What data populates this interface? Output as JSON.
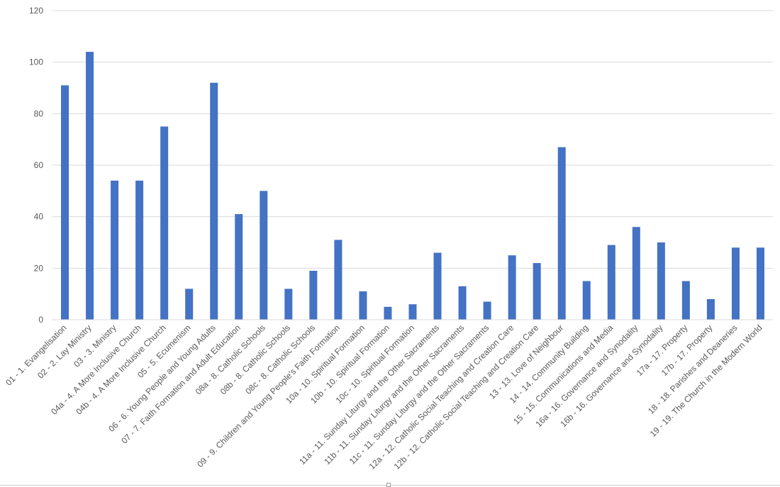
{
  "chart_data": {
    "type": "bar",
    "title": "",
    "xlabel": "",
    "ylabel": "",
    "ylim": [
      0,
      120
    ],
    "yticks": [
      0,
      20,
      40,
      60,
      80,
      100,
      120
    ],
    "grid": true,
    "colors": {
      "bar": "#4472C4",
      "grid": "#d9d9d9",
      "tick_text": "#595959"
    },
    "categories": [
      "01 - 1. Evangelisation",
      "02 - 2. Lay Ministry",
      "03 - 3. Ministry",
      "04a - 4. A More Inclusive Church",
      "04b - 4. A More Inclusive Church",
      "05 - 5. Ecumenism",
      "06 - 6. Young People and Young Adults",
      "07 - 7. Faith Formation and Adult Education",
      "08a - 8. Catholic Schools",
      "08b - 8. Catholic Schools",
      "08c - 8. Catholic Schools",
      "09 - 9. Children and Young People's Faith Formation",
      "10a - 10. Spiritual Formation",
      "10b - 10. Spiritual Formation",
      "10c - 10. Spiritual Formation",
      "11a - 11. Sunday Liturgy and the Other Sacraments",
      "11b - 11. Sunday Liturgy and the Other Sacraments",
      "11c - 11. Sunday Liturgy and the Other Sacraments",
      "12a - 12. Catholic Social Teaching and Creation Care",
      "12b - 12. Catholic Social Teaching and Creation Care",
      "13 - 13. Love of Neighbour",
      "14 - 14. Community Building",
      "15 - 15. Communications and Media",
      "16a - 16. Governance and Synodality",
      "16b - 16. Governance and Synodality",
      "17a - 17. Property",
      "17b - 17. Property",
      "18 - 18. Parishes and Deaneries",
      "19 - 19. The Church in the Modern World"
    ],
    "values": [
      91,
      104,
      54,
      54,
      75,
      12,
      92,
      41,
      50,
      12,
      19,
      31,
      11,
      5,
      6,
      26,
      13,
      7,
      25,
      22,
      67,
      15,
      29,
      36,
      30,
      15,
      8,
      28,
      28
    ]
  }
}
